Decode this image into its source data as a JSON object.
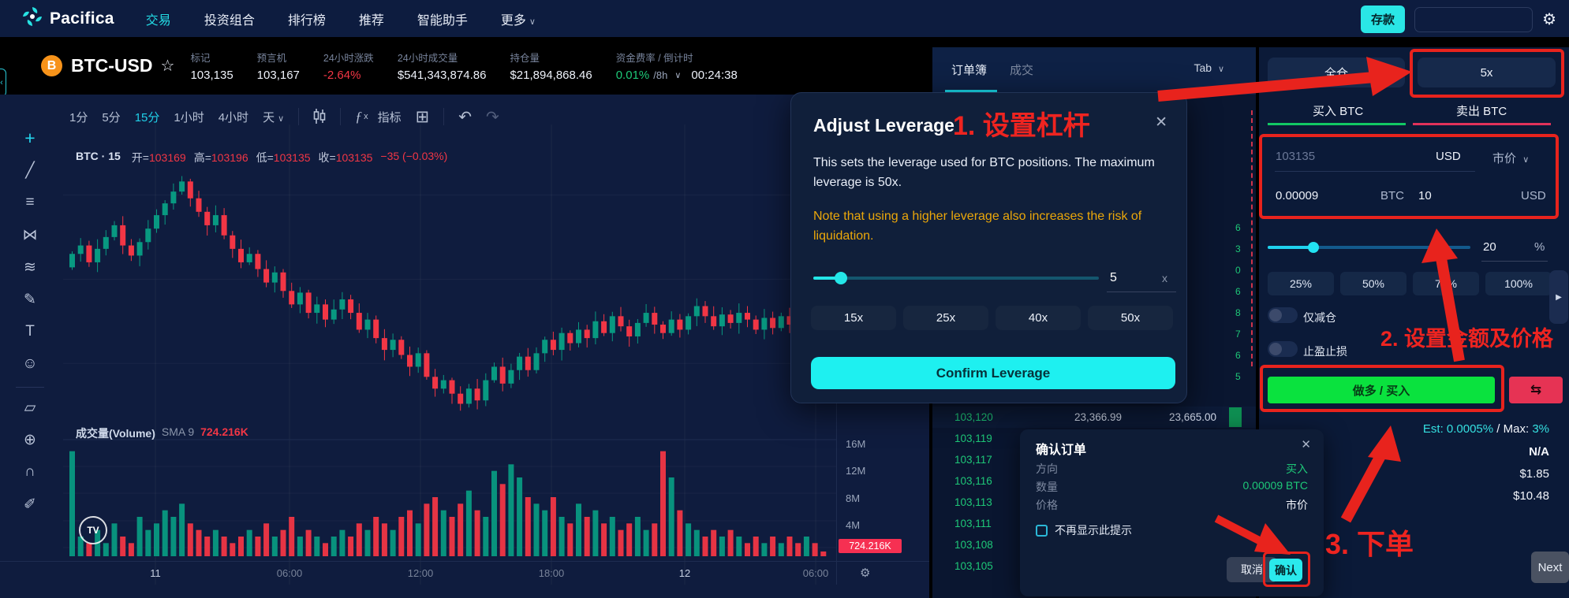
{
  "colors": {
    "accent": "#20e4e6",
    "green": "#1ec878",
    "red": "#f23645",
    "annotation": "#e8231d",
    "warning": "#eba70a",
    "buy_button": "#0ae23e"
  },
  "nav": {
    "brand": "Pacifica",
    "items": [
      {
        "label": "交易",
        "active": true
      },
      {
        "label": "投资组合",
        "active": false
      },
      {
        "label": "排行榜",
        "active": false
      },
      {
        "label": "推荐",
        "active": false
      },
      {
        "label": "智能助手",
        "active": false
      },
      {
        "label": "更多",
        "active": false,
        "caret": true
      }
    ],
    "deposit": "存款"
  },
  "symbol": {
    "coin": "B",
    "name": "BTC-USD",
    "star": "☆",
    "stats": [
      {
        "label": "标记",
        "value": "103,135",
        "cls": ""
      },
      {
        "label": "预言机",
        "value": "103,167",
        "cls": ""
      },
      {
        "label": "24小时涨跌",
        "value": "-2.64%",
        "cls": "red"
      },
      {
        "label": "24小时成交量",
        "value": "$541,343,874.86",
        "cls": ""
      },
      {
        "label": "持仓量",
        "value": "$21,894,868.46",
        "cls": ""
      }
    ],
    "funding": {
      "label": "资金费率 / 倒计时",
      "rate": "0.01%",
      "interval": "/8h",
      "countdown": "00:24:38"
    }
  },
  "chart": {
    "timeframes": [
      {
        "label": "1分",
        "active": false
      },
      {
        "label": "5分",
        "active": false
      },
      {
        "label": "15分",
        "active": true
      },
      {
        "label": "1小时",
        "active": false
      },
      {
        "label": "4小时",
        "active": false
      },
      {
        "label": "天",
        "active": false,
        "caret": true
      }
    ],
    "indicator_label": "指标",
    "tools": [
      "crosshair",
      "trendline",
      "fib-retracement",
      "xabcd-pattern",
      "projection",
      "brush",
      "text",
      "emoji",
      "ruler",
      "zoom",
      "magnet",
      "draw"
    ],
    "legend": {
      "symbol": "BTC · 15",
      "items": [
        {
          "k": "开=",
          "v": "103169"
        },
        {
          "k": "高=",
          "v": "103196"
        },
        {
          "k": "低=",
          "v": "103135"
        },
        {
          "k": "收=",
          "v": "103135"
        },
        {
          "k": "",
          "v": "−35 (−0.03%)"
        }
      ]
    },
    "volume_legend": {
      "title": "成交量(Volume)",
      "sma": "SMA 9",
      "value": "724.216K"
    },
    "volume_axis": [
      "16M",
      "12M",
      "8M",
      "4M"
    ],
    "volume_badge": "724.216K",
    "time_axis": [
      {
        "label": "11",
        "day": true
      },
      {
        "label": "06:00",
        "day": false
      },
      {
        "label": "12:00",
        "day": false
      },
      {
        "label": "18:00",
        "day": false
      },
      {
        "label": "12",
        "day": true
      },
      {
        "label": "06:00",
        "day": false
      }
    ],
    "tv_logo": "TV",
    "closes": [
      103650,
      103700,
      103600,
      103680,
      103750,
      103820,
      103700,
      103640,
      103720,
      103800,
      103880,
      103950,
      104020,
      104080,
      103980,
      103900,
      103820,
      103880,
      103760,
      103680,
      103600,
      103650,
      103560,
      103480,
      103540,
      103430,
      103350,
      103420,
      103300,
      103350,
      103260,
      103320,
      103380,
      103300,
      103200,
      103260,
      103150,
      103080,
      103140,
      103050,
      102980,
      103060,
      102920,
      102850,
      102900,
      102820,
      102760,
      102850,
      102780,
      102900,
      102980,
      102880,
      102960,
      103040,
      102960,
      103060,
      103140,
      103080,
      103180,
      103120,
      103200,
      103150,
      103250,
      103180,
      103280,
      103220,
      103160,
      103240,
      103300,
      103230,
      103180,
      103260,
      103200,
      103280,
      103340,
      103280,
      103220,
      103290,
      103240,
      103300,
      103260,
      103200,
      103270,
      103210,
      103280,
      103230,
      103180,
      103250,
      103190,
      103135
    ],
    "volumes": [
      16,
      3,
      2,
      4,
      2,
      5,
      3,
      2,
      6,
      4,
      5,
      7,
      6,
      8,
      5,
      4,
      3,
      4,
      3,
      2,
      3,
      4,
      3,
      5,
      3,
      4,
      6,
      3,
      4,
      3,
      2,
      3,
      4,
      3,
      5,
      4,
      6,
      5,
      4,
      6,
      7,
      5,
      8,
      9,
      7,
      6,
      8,
      10,
      7,
      6,
      13,
      11,
      14,
      12,
      9,
      8,
      7,
      9,
      6,
      5,
      8,
      6,
      7,
      5,
      6,
      4,
      5,
      6,
      4,
      5,
      16,
      12,
      7,
      5,
      4,
      3,
      4,
      3,
      4,
      3,
      2,
      3,
      2,
      3,
      2,
      3,
      2,
      3,
      2,
      0.724
    ]
  },
  "orderbook": {
    "tabs": [
      {
        "label": "订单簿",
        "active": true
      },
      {
        "label": "成交",
        "active": false
      }
    ],
    "group_dropdown": "Tab",
    "top_row": {
      "price": "103,120",
      "size": "23,366.99",
      "total": "23,665.00"
    },
    "bid_prices": [
      "103,119",
      "103,117",
      "103,116",
      "103,113",
      "103,111",
      "103,108",
      "103,105"
    ],
    "sliver_digits": [
      "6",
      "3",
      "0",
      "6",
      "8",
      "7",
      "6",
      "5"
    ]
  },
  "leverage_modal": {
    "title": "Adjust Leverage",
    "close": "✕",
    "description": "This sets the leverage used for BTC positions. The maximum leverage is 50x.",
    "warning": "Note that using a higher leverage also increases the risk of liquidation.",
    "value": "5",
    "unit": "x",
    "presets": [
      "15x",
      "25x",
      "40x",
      "50x"
    ],
    "confirm_label": "Confirm Leverage"
  },
  "trade_panel": {
    "margin_button": "全仓",
    "leverage_button": "5x",
    "tabs": [
      {
        "label": "买入 BTC",
        "active": true
      },
      {
        "label": "卖出 BTC",
        "active": false
      }
    ],
    "price_value": "103135",
    "price_unit": "USD",
    "order_type": "市价",
    "amount_btc": "0.00009",
    "btc_unit": "BTC",
    "amount_usd": "10",
    "usd_unit": "USD",
    "slider_value": "20",
    "slider_unit": "%",
    "percents": [
      "25%",
      "50%",
      "75%",
      "100%"
    ],
    "expand_arrow": "▶",
    "reduce_only": "仅减仓",
    "tpsl": "止盈止损",
    "submit_label": "做多 / 买入",
    "swap_icon": "⇆",
    "fee_est": "Est: 0.0005%",
    "fee_sep": "/ Max:",
    "fee_max": "3%",
    "row_values": [
      "N/A",
      "$1.85",
      "$10.48"
    ],
    "next_label": "Next"
  },
  "confirm_dialog": {
    "title": "确认订单",
    "close": "✕",
    "rows": [
      {
        "label": "方向",
        "value": "买入",
        "green": true
      },
      {
        "label": "数量",
        "value": "0.00009 BTC",
        "green": true
      },
      {
        "label": "价格",
        "value": "市价",
        "green": false
      }
    ],
    "checkbox_label": "不再显示此提示",
    "cancel_label": "取消",
    "confirm_label": "确认"
  },
  "annotations": {
    "step1": "1. 设置杠杆",
    "step2": "2. 设置金额及价格",
    "step3": "3. 下单"
  }
}
